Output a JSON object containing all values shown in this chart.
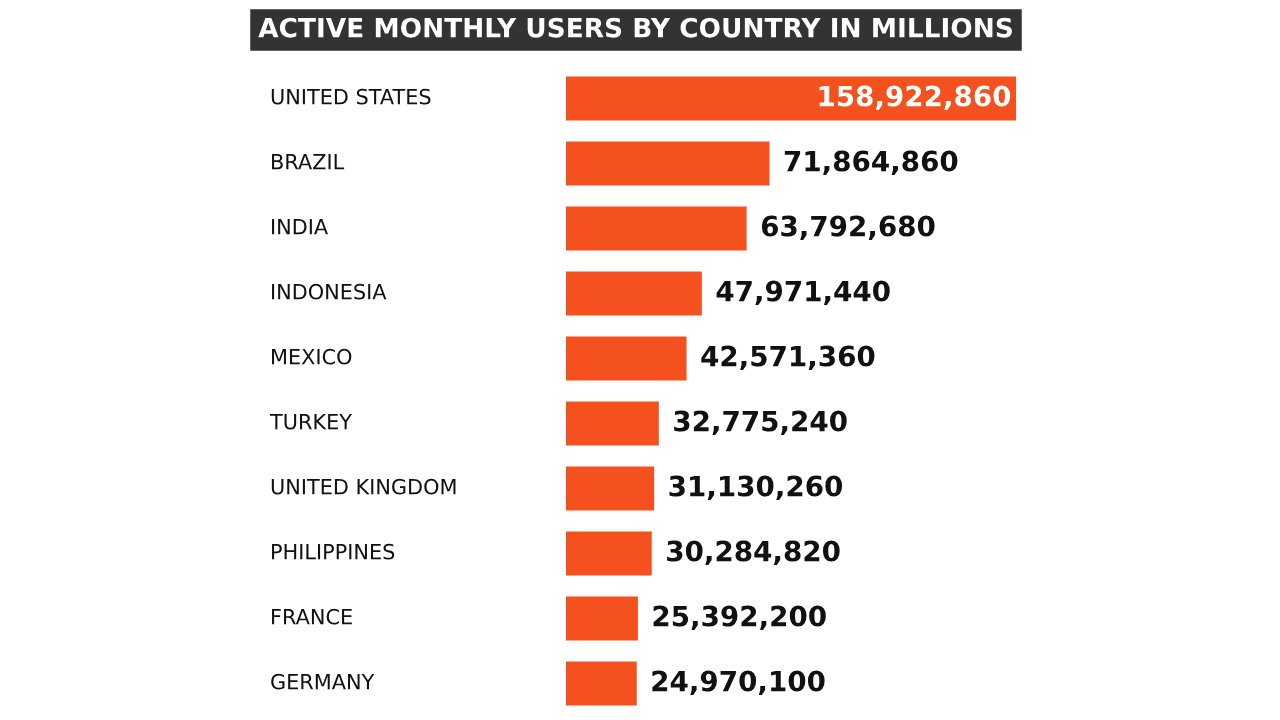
{
  "chart_data": {
    "type": "bar",
    "orientation": "horizontal",
    "title": "ACTIVE MONTHLY USERS BY COUNTRY IN MILLIONS",
    "categories": [
      "UNITED STATES",
      "BRAZIL",
      "INDIA",
      "INDONESIA",
      "MEXICO",
      "TURKEY",
      "UNITED KINGDOM",
      "PHILIPPINES",
      "FRANCE",
      "GERMANY"
    ],
    "values": [
      158922860,
      71864860,
      63792680,
      47971440,
      42571360,
      32775240,
      31130260,
      30284820,
      25392200,
      24970100
    ],
    "color": "#f4511e",
    "value_labels": [
      "158,922,860",
      "71,864,860",
      "63,792,680",
      "47,971,440",
      "42,571,360",
      "32,775,240",
      "31,130,260",
      "30,284,820",
      "25,392,200",
      "24,970,100"
    ]
  }
}
